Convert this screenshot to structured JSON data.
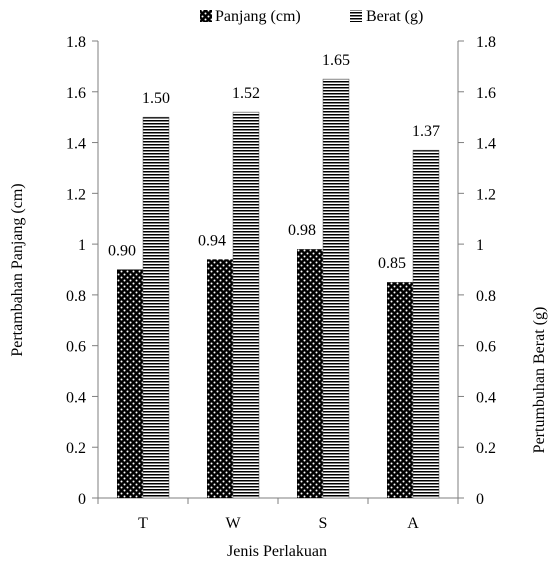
{
  "chart_data": {
    "type": "bar",
    "categories": [
      "T",
      "W",
      "S",
      "A"
    ],
    "series": [
      {
        "name": "Panjang (cm)",
        "values": [
          0.9,
          0.94,
          0.98,
          0.85
        ],
        "labels": [
          "0.90",
          "0.94",
          "0.98",
          "0.85"
        ],
        "axis": "left",
        "pattern": "dots"
      },
      {
        "name": "Berat (g)",
        "values": [
          1.5,
          1.52,
          1.65,
          1.37
        ],
        "labels": [
          "1.50",
          "1.52",
          "1.65",
          "1.37"
        ],
        "axis": "right",
        "pattern": "horizontal-stripes"
      }
    ],
    "xlabel": "Jenis Perlakuan",
    "ylabel_left": "Pertambahan Panjang (cm)",
    "ylabel_right": "Pertumbuhan Berat (g)",
    "ylim_left": [
      0,
      1.8
    ],
    "ylim_right": [
      0,
      1.8
    ],
    "yticks": [
      "0",
      "0.2",
      "0.4",
      "0.6",
      "0.8",
      "1",
      "1.2",
      "1.4",
      "1.6",
      "1.8"
    ],
    "legend_position": "top",
    "grid": false,
    "colors": {
      "bar_dark": "#000000",
      "bar_light": "#ffffff",
      "axis": "#7f7f7f",
      "text": "#000000"
    }
  }
}
